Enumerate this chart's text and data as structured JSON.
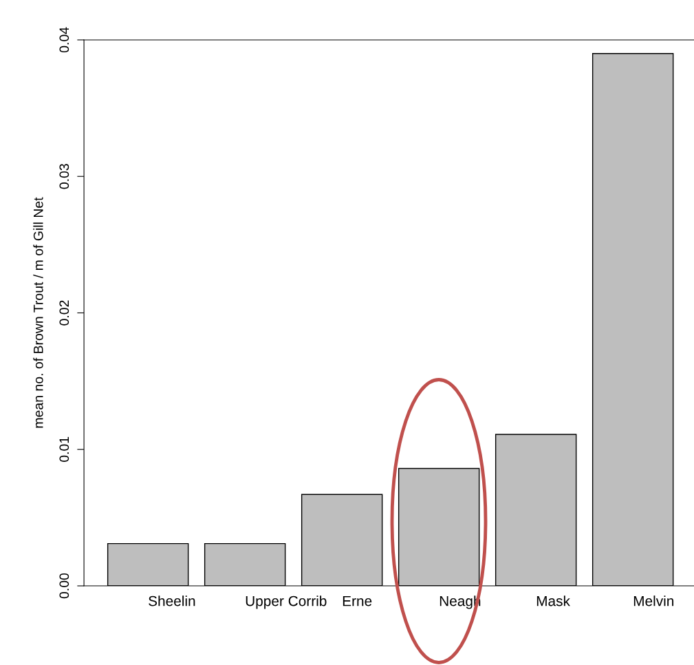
{
  "chart_data": {
    "type": "bar",
    "ylabel": "mean no. of Brown Trout / m of Gill Net",
    "categories": [
      "Sheelin",
      "Upper Corrib",
      "Erne",
      "Neagh",
      "Mask",
      "Melvin"
    ],
    "values": [
      0.0031,
      0.0031,
      0.0067,
      0.0086,
      0.0111,
      0.039
    ],
    "color": "#bebebe",
    "ylim": [
      0,
      0.04
    ],
    "yticks": [
      {
        "value": 0,
        "label": "0.00"
      },
      {
        "value": 0.01,
        "label": "0.01"
      },
      {
        "value": 0.02,
        "label": "0.02"
      },
      {
        "value": 0.03,
        "label": "0.03"
      },
      {
        "value": 0.04,
        "label": "0.04"
      }
    ],
    "grid": false
  }
}
